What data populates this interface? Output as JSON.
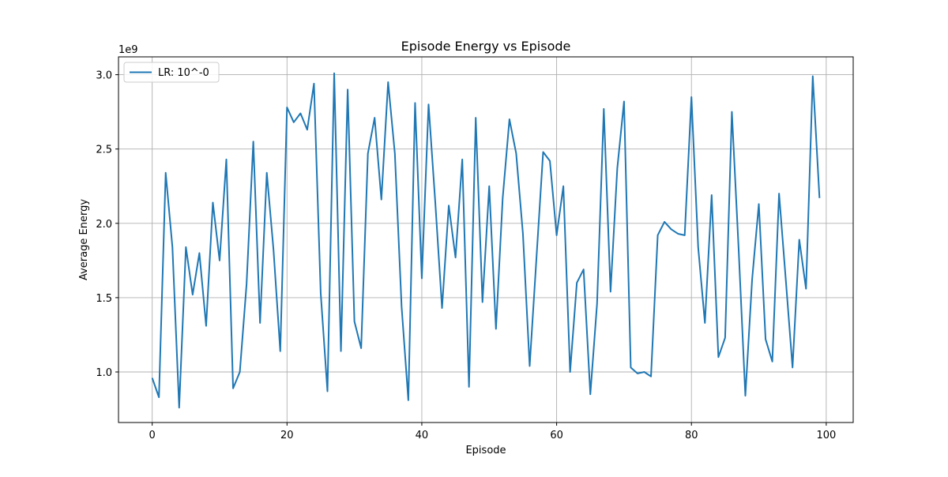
{
  "chart_data": {
    "type": "line",
    "title": "Episode Energy  vs Episode",
    "xlabel": "Episode",
    "ylabel": "Average Energy",
    "y_offset_label": "1e9",
    "y_scale_multiplier": 1000000000,
    "xlim": [
      -5,
      104
    ],
    "ylim": [
      0.66,
      3.12
    ],
    "xticks": [
      0,
      20,
      40,
      60,
      80,
      100
    ],
    "xtick_labels": [
      "0",
      "20",
      "40",
      "60",
      "80",
      "100"
    ],
    "yticks": [
      1.0,
      1.5,
      2.0,
      2.5,
      3.0
    ],
    "ytick_labels": [
      "1.0",
      "1.5",
      "2.0",
      "2.5",
      "3.0"
    ],
    "grid": true,
    "legend_position": "upper-left",
    "x": [
      0,
      1,
      2,
      3,
      4,
      5,
      6,
      7,
      8,
      9,
      10,
      11,
      12,
      13,
      14,
      15,
      16,
      17,
      18,
      19,
      20,
      21,
      22,
      23,
      24,
      25,
      26,
      27,
      28,
      29,
      30,
      31,
      32,
      33,
      34,
      35,
      36,
      37,
      38,
      39,
      40,
      41,
      42,
      43,
      44,
      45,
      46,
      47,
      48,
      49,
      50,
      51,
      52,
      53,
      54,
      55,
      56,
      57,
      58,
      59,
      60,
      61,
      62,
      63,
      64,
      65,
      66,
      67,
      68,
      69,
      70,
      71,
      72,
      73,
      74,
      75,
      76,
      77,
      78,
      79,
      80,
      81,
      82,
      83,
      84,
      85,
      86,
      87,
      88,
      89,
      90,
      91,
      92,
      93,
      94,
      95,
      96,
      97,
      98,
      99
    ],
    "series": [
      {
        "name": "LR: 10^-0",
        "color": "#1f77b4",
        "values": [
          0.96,
          0.83,
          2.34,
          1.84,
          0.76,
          1.84,
          1.52,
          1.8,
          1.31,
          2.14,
          1.75,
          2.43,
          0.89,
          1.0,
          1.59,
          2.55,
          1.33,
          2.34,
          1.82,
          1.14,
          2.78,
          2.68,
          2.74,
          2.63,
          2.94,
          1.53,
          0.87,
          3.01,
          1.14,
          2.9,
          1.34,
          1.16,
          2.47,
          2.71,
          2.16,
          2.95,
          2.47,
          1.44,
          0.81,
          2.81,
          1.63,
          2.8,
          2.14,
          1.43,
          2.12,
          1.77,
          2.43,
          0.9,
          2.71,
          1.47,
          2.25,
          1.29,
          2.17,
          2.7,
          2.47,
          1.93,
          1.04,
          1.76,
          2.48,
          2.42,
          1.92,
          2.25,
          1.0,
          1.6,
          1.69,
          0.85,
          1.46,
          2.77,
          1.54,
          2.37,
          2.82,
          1.03,
          0.99,
          1.0,
          0.97,
          1.92,
          2.01,
          1.96,
          1.93,
          1.92,
          2.85,
          1.84,
          1.33,
          2.19,
          1.1,
          1.23,
          2.75,
          1.83,
          0.84,
          1.62,
          2.13,
          1.22,
          1.07,
          2.2,
          1.62,
          1.03,
          1.89,
          1.56,
          2.99,
          2.17
        ]
      }
    ]
  }
}
